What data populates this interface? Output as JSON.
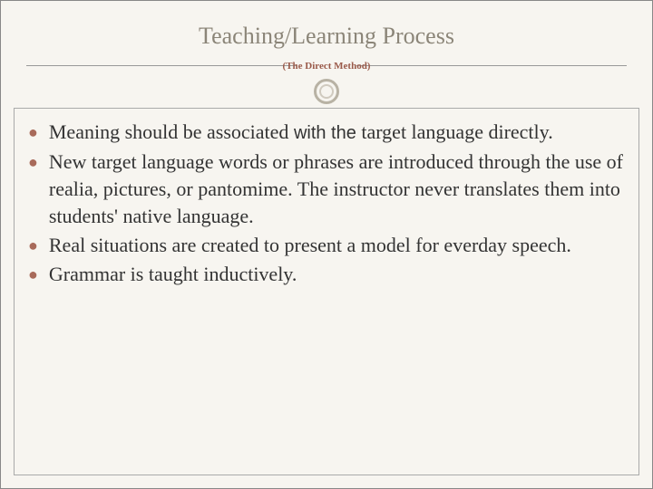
{
  "title": "Teaching/Learning Process",
  "subtitle": "(The Direct Method)",
  "bullets": [
    {
      "prefix": "Meaning should be associated ",
      "alt": "with the",
      "suffix": " target language directly."
    },
    {
      "text": "New target language words or phrases are introduced through the use of realia, pictures, or pantomime. The instructor never translates them into students' native language."
    },
    {
      "text": "Real situations are created to present a model for everday speech."
    },
    {
      "text": "Grammar is taught inductively."
    }
  ],
  "colors": {
    "background": "#f7f5f0",
    "title_color": "#8b8578",
    "subtitle_color": "#9a5a4a",
    "bullet_color": "#a86a5a",
    "text_color": "#333333",
    "border_color": "#888888"
  },
  "typography": {
    "title_fontsize": 26,
    "subtitle_fontsize": 11,
    "body_fontsize": 22,
    "body_lineheight": 30
  }
}
